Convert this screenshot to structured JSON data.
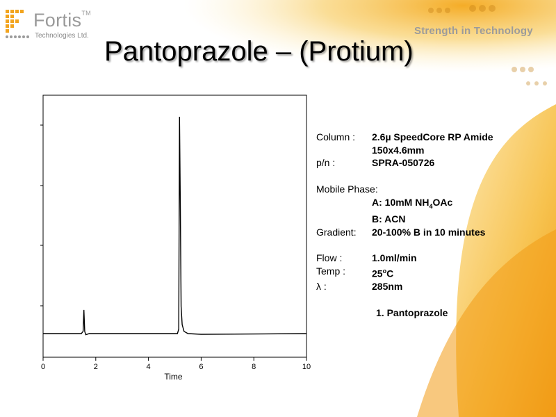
{
  "logo": {
    "name": "Fortis",
    "trademark": "TM",
    "subtitle": "Technologies Ltd."
  },
  "tagline": "Strength in Technology",
  "title": "Pantoprazole – (Protium)",
  "conditions": {
    "column_label": "Column :",
    "column_value": "2.6µ SpeedCore RP Amide",
    "column_dims": "150x4.6mm",
    "pn_label": "p/n :",
    "pn_value": "SPRA-050726",
    "mobile_phase_label": "Mobile Phase:",
    "phase_a_prefix": "A: 10mM NH",
    "phase_a_subscript": "4",
    "phase_a_suffix": "OAc",
    "phase_b": "B: ACN",
    "gradient_label": "Gradient:",
    "gradient_value": "20-100% B in 10 minutes",
    "flow_label": "Flow :",
    "flow_value": "1.0ml/min",
    "temp_label": "Temp :",
    "temp_prefix": "25",
    "temp_degree": "o",
    "temp_suffix": "C",
    "wavelength_label": "λ :",
    "wavelength_value": "285nm",
    "peak_label": "1. Pantoprazole"
  },
  "colors": {
    "accent_orange": "#f0a020",
    "accent_light": "#fbe3a0",
    "trace": "#000000"
  },
  "chart_data": {
    "type": "line",
    "xlabel": "Time",
    "ylabel": "",
    "xlim": [
      0,
      10
    ],
    "ylim": [
      0,
      1
    ],
    "x_ticks": [
      "0",
      "2",
      "4",
      "6",
      "8",
      "10"
    ],
    "y_ticks_shown": false,
    "grid": false,
    "series": [
      {
        "x": [
          0.0,
          1.45,
          1.52,
          1.55,
          1.58,
          1.62,
          1.75,
          5.1,
          5.15,
          5.18,
          5.21,
          5.24,
          5.28,
          5.35,
          5.5,
          6.0,
          10.0
        ],
        "y": [
          0.0,
          0.0,
          0.01,
          0.105,
          0.01,
          -0.005,
          0.0,
          0.0,
          0.02,
          0.96,
          0.55,
          0.12,
          0.04,
          0.01,
          0.0,
          -0.003,
          0.0
        ]
      }
    ]
  }
}
